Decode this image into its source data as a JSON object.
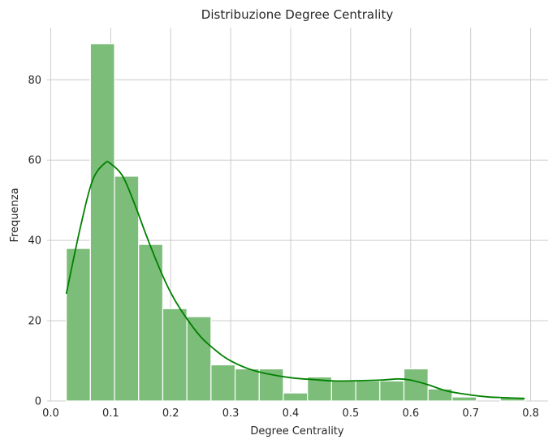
{
  "chart_data": {
    "type": "histogram",
    "title": "Distribuzione Degree Centrality",
    "xlabel": "Degree Centrality",
    "ylabel": "Frequenza",
    "xlim": [
      -0.006,
      0.829
    ],
    "ylim": [
      0,
      93
    ],
    "xticks": [
      0.0,
      0.1,
      0.2,
      0.3,
      0.4,
      0.5,
      0.6,
      0.7,
      0.8
    ],
    "xtick_labels": [
      "0.0",
      "0.1",
      "0.2",
      "0.3",
      "0.4",
      "0.5",
      "0.6",
      "0.7",
      "0.8"
    ],
    "yticks": [
      0,
      20,
      40,
      60,
      80
    ],
    "ytick_labels": [
      "0",
      "20",
      "40",
      "60",
      "80"
    ],
    "grid": true,
    "bar_color": "#7cbd7a",
    "bar_edge_color": "#ffffff",
    "kde_color": "#008000",
    "bins": {
      "start": 0.026,
      "width": 0.0402,
      "counts": [
        38,
        89,
        56,
        39,
        23,
        21,
        9,
        8,
        8,
        2,
        6,
        5,
        5,
        5,
        8,
        3,
        1,
        0,
        1
      ]
    },
    "kde": {
      "x": [
        0.026,
        0.05,
        0.07,
        0.09,
        0.1,
        0.12,
        0.14,
        0.16,
        0.18,
        0.2,
        0.22,
        0.25,
        0.28,
        0.3,
        0.33,
        0.36,
        0.4,
        0.44,
        0.47,
        0.5,
        0.55,
        0.58,
        0.6,
        0.63,
        0.66,
        0.7,
        0.73,
        0.76,
        0.79
      ],
      "y": [
        26.7,
        43.6,
        55.0,
        59.2,
        59.1,
        56.0,
        49.0,
        41.0,
        33.5,
        27.0,
        22.0,
        16.0,
        12.0,
        10.0,
        8.0,
        6.8,
        5.8,
        5.3,
        5.0,
        5.0,
        5.2,
        5.5,
        5.2,
        4.0,
        2.5,
        1.5,
        1.0,
        0.8,
        0.6
      ]
    }
  }
}
